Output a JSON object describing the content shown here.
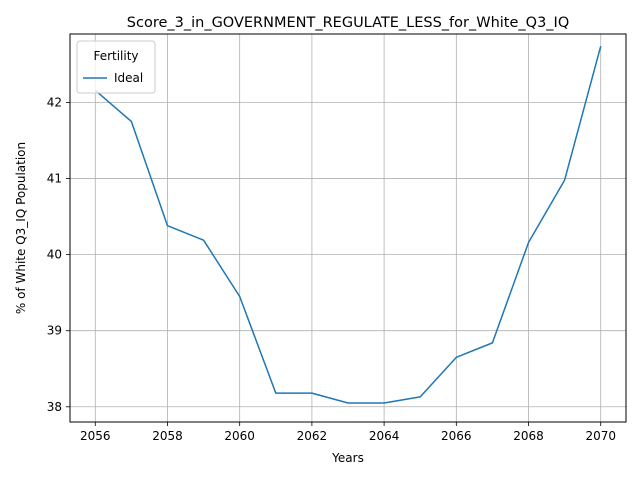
{
  "chart_data": {
    "type": "line",
    "title": "Score_3_in_GOVERNMENT_REGULATE_LESS_for_White_Q3_IQ",
    "xlabel": "Years",
    "ylabel": "% of White Q3_IQ Population",
    "xlim": [
      2055.3,
      2070.7
    ],
    "ylim": [
      37.8,
      42.9
    ],
    "xticks": [
      2056,
      2058,
      2060,
      2062,
      2064,
      2066,
      2068,
      2070
    ],
    "yticks": [
      38,
      39,
      40,
      41,
      42
    ],
    "grid": true,
    "legend": {
      "title": "Fertility",
      "placement": "top-left"
    },
    "series": [
      {
        "name": "Ideal",
        "color": "#1f77b4",
        "x": [
          2056,
          2057,
          2058,
          2059,
          2060,
          2061,
          2062,
          2063,
          2064,
          2065,
          2066,
          2067,
          2068,
          2069,
          2070
        ],
        "y": [
          42.16,
          41.75,
          40.38,
          40.19,
          39.45,
          38.18,
          38.18,
          38.05,
          38.05,
          38.13,
          38.65,
          38.84,
          40.16,
          40.98,
          42.74
        ]
      }
    ]
  }
}
